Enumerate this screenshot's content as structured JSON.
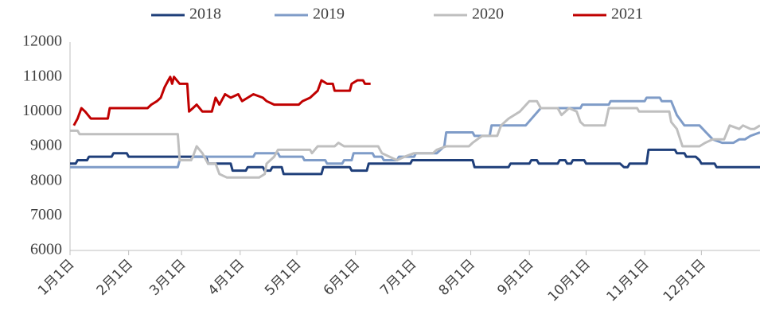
{
  "chart_data": {
    "type": "line",
    "xlim": [
      1,
      366
    ],
    "xticks": [
      {
        "value": 1,
        "label": "1月1日"
      },
      {
        "value": 32,
        "label": "2月1日"
      },
      {
        "value": 60,
        "label": "3月1日"
      },
      {
        "value": 91,
        "label": "4月1日"
      },
      {
        "value": 121,
        "label": "5月1日"
      },
      {
        "value": 152,
        "label": "6月1日"
      },
      {
        "value": 182,
        "label": "7月1日"
      },
      {
        "value": 213,
        "label": "8月1日"
      },
      {
        "value": 244,
        "label": "9月1日"
      },
      {
        "value": 274,
        "label": "10月1日"
      },
      {
        "value": 305,
        "label": "11月1日"
      },
      {
        "value": 335,
        "label": "12月1日"
      }
    ],
    "ylim": [
      6000,
      12000
    ],
    "yticks": [
      6000,
      7000,
      8000,
      9000,
      10000,
      11000,
      12000
    ],
    "grid": false,
    "legend": "top",
    "series": [
      {
        "name": "2018",
        "color": "#1f3f7a",
        "x": [
          1,
          4,
          5,
          10,
          11,
          23,
          24,
          31,
          32,
          73,
          74,
          86,
          87,
          94,
          95,
          103,
          104,
          107,
          108,
          113,
          114,
          134,
          135,
          149,
          150,
          158,
          159,
          181,
          182,
          214,
          215,
          233,
          234,
          244,
          245,
          248,
          249,
          259,
          260,
          263,
          264,
          266,
          267,
          273,
          274,
          292,
          294,
          296,
          297,
          306,
          307,
          321,
          322,
          326,
          327,
          332,
          334,
          335,
          342,
          343,
          366
        ],
        "values": [
          8500,
          8500,
          8600,
          8600,
          8700,
          8700,
          8800,
          8800,
          8700,
          8700,
          8500,
          8500,
          8300,
          8300,
          8400,
          8400,
          8300,
          8300,
          8400,
          8400,
          8200,
          8200,
          8400,
          8400,
          8300,
          8300,
          8500,
          8500,
          8600,
          8600,
          8400,
          8400,
          8500,
          8500,
          8600,
          8600,
          8500,
          8500,
          8600,
          8600,
          8500,
          8500,
          8600,
          8600,
          8500,
          8500,
          8400,
          8400,
          8500,
          8500,
          8900,
          8900,
          8800,
          8800,
          8700,
          8700,
          8600,
          8500,
          8500,
          8400,
          8400
        ]
      },
      {
        "name": "2019",
        "color": "#7f9cc8",
        "x": [
          1,
          58,
          59,
          65,
          66,
          98,
          99,
          111,
          112,
          124,
          125,
          136,
          137,
          145,
          146,
          150,
          151,
          161,
          162,
          166,
          167,
          174,
          175,
          183,
          184,
          195,
          197,
          199,
          200,
          214,
          215,
          223,
          224,
          242,
          250,
          271,
          272,
          286,
          287,
          305,
          306,
          313,
          314,
          319,
          322,
          326,
          334,
          341,
          346,
          352,
          355,
          358,
          361,
          366
        ],
        "values": [
          8400,
          8400,
          8600,
          8600,
          8700,
          8700,
          8800,
          8800,
          8700,
          8700,
          8600,
          8600,
          8500,
          8500,
          8600,
          8600,
          8800,
          8800,
          8700,
          8700,
          8600,
          8600,
          8700,
          8700,
          8800,
          8800,
          8900,
          9000,
          9400,
          9400,
          9300,
          9300,
          9600,
          9600,
          10100,
          10100,
          10200,
          10200,
          10300,
          10300,
          10400,
          10400,
          10300,
          10300,
          9900,
          9600,
          9600,
          9200,
          9100,
          9100,
          9200,
          9200,
          9300,
          9400
        ]
      },
      {
        "name": "2020",
        "color": "#bfbfbf",
        "x": [
          1,
          5,
          6,
          58,
          59,
          65,
          66,
          68,
          71,
          74,
          78,
          80,
          84,
          101,
          104,
          105,
          109,
          111,
          128,
          129,
          132,
          141,
          143,
          146,
          164,
          166,
          170,
          174,
          178,
          183,
          193,
          195,
          200,
          212,
          214,
          219,
          227,
          229,
          233,
          239,
          244,
          248,
          250,
          259,
          261,
          265,
          269,
          271,
          273,
          284,
          286,
          301,
          302,
          318,
          319,
          322,
          325,
          334,
          337,
          341,
          347,
          350,
          355,
          357,
          361,
          363,
          366
        ],
        "values": [
          9450,
          9450,
          9350,
          9350,
          8600,
          8600,
          8700,
          9000,
          8800,
          8500,
          8500,
          8200,
          8100,
          8100,
          8200,
          8500,
          8700,
          8900,
          8900,
          8800,
          9000,
          9000,
          9100,
          9000,
          9000,
          8800,
          8700,
          8600,
          8700,
          8800,
          8800,
          8900,
          9000,
          9000,
          9100,
          9300,
          9300,
          9600,
          9800,
          10000,
          10300,
          10300,
          10100,
          10100,
          9900,
          10100,
          10000,
          9700,
          9600,
          9600,
          10100,
          10100,
          10000,
          10000,
          9700,
          9500,
          9000,
          9000,
          9100,
          9200,
          9200,
          9600,
          9500,
          9600,
          9500,
          9500,
          9600
        ]
      },
      {
        "name": "2021",
        "color": "#c00000",
        "x": [
          3,
          5,
          7,
          9,
          12,
          21,
          22,
          42,
          44,
          47,
          49,
          51,
          53,
          54,
          55,
          56,
          59,
          63,
          64,
          66,
          68,
          71,
          76,
          78,
          80,
          83,
          86,
          90,
          92,
          95,
          98,
          103,
          105,
          109,
          122,
          124,
          128,
          132,
          134,
          137,
          140,
          141,
          149,
          150,
          153,
          156,
          157,
          160
        ],
        "values": [
          9600,
          9800,
          10100,
          10000,
          9800,
          9800,
          10100,
          10100,
          10200,
          10300,
          10400,
          10700,
          10900,
          11000,
          10800,
          11000,
          10800,
          10800,
          10000,
          10100,
          10200,
          10000,
          10000,
          10400,
          10200,
          10500,
          10400,
          10500,
          10300,
          10400,
          10500,
          10400,
          10300,
          10200,
          10200,
          10300,
          10400,
          10600,
          10900,
          10800,
          10800,
          10600,
          10600,
          10800,
          10900,
          10900,
          10800,
          10800
        ]
      }
    ]
  }
}
